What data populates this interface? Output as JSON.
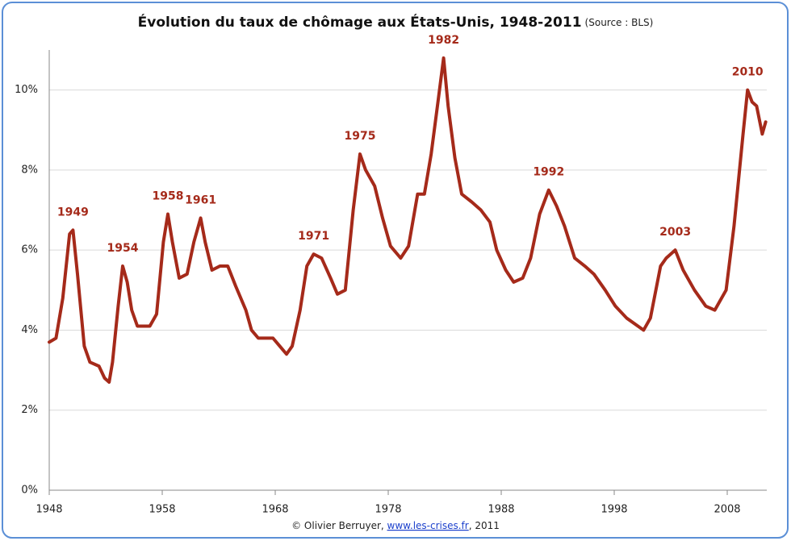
{
  "chart_data": {
    "type": "line",
    "title": "Évolution du taux de chômage aux États-Unis, 1948-2011",
    "subtitle": "(Source : BLS)",
    "footer": {
      "prefix": "© Olivier Berruyer, ",
      "link": "www.les-crises.fr",
      "suffix": ", 2011"
    },
    "color": "#a52a1a",
    "x": [
      1948.0,
      1948.6,
      1949.2,
      1949.8,
      1950.1,
      1950.5,
      1951.1,
      1951.6,
      1952.4,
      1952.9,
      1953.3,
      1953.6,
      1954.1,
      1954.5,
      1954.9,
      1955.3,
      1955.8,
      1956.2,
      1956.9,
      1957.5,
      1958.1,
      1958.5,
      1958.9,
      1959.5,
      1960.2,
      1960.8,
      1961.4,
      1961.8,
      1962.4,
      1963.1,
      1963.8,
      1964.5,
      1965.4,
      1965.9,
      1966.5,
      1967.2,
      1967.8,
      1968.4,
      1969.0,
      1969.5,
      1970.2,
      1970.8,
      1971.4,
      1972.1,
      1972.9,
      1973.5,
      1974.2,
      1974.9,
      1975.5,
      1976.0,
      1976.8,
      1977.5,
      1978.2,
      1979.1,
      1979.8,
      1980.6,
      1981.2,
      1981.8,
      1982.4,
      1982.9,
      1983.3,
      1983.9,
      1984.5,
      1985.4,
      1986.2,
      1987.0,
      1987.6,
      1988.4,
      1989.1,
      1989.9,
      1990.6,
      1991.4,
      1992.2,
      1992.9,
      1993.6,
      1994.5,
      1995.4,
      1996.2,
      1997.2,
      1998.1,
      1999.1,
      2000.1,
      2000.6,
      2001.2,
      2002.1,
      2002.6,
      2003.4,
      2004.1,
      2005.1,
      2006.1,
      2006.9,
      2007.9,
      2008.6,
      2009.4,
      2009.8,
      2010.2,
      2010.6,
      2011.1,
      2011.4
    ],
    "values": [
      3.7,
      3.8,
      4.8,
      6.4,
      6.5,
      5.4,
      3.6,
      3.2,
      3.1,
      2.8,
      2.7,
      3.2,
      4.6,
      5.6,
      5.2,
      4.5,
      4.1,
      4.1,
      4.1,
      4.4,
      6.2,
      6.9,
      6.2,
      5.3,
      5.4,
      6.2,
      6.8,
      6.2,
      5.5,
      5.6,
      5.6,
      5.1,
      4.5,
      4.0,
      3.8,
      3.8,
      3.8,
      3.6,
      3.4,
      3.6,
      4.5,
      5.6,
      5.9,
      5.8,
      5.3,
      4.9,
      5.0,
      7.0,
      8.4,
      8.0,
      7.6,
      6.8,
      6.1,
      5.8,
      6.1,
      7.4,
      7.4,
      8.4,
      9.7,
      10.8,
      9.6,
      8.3,
      7.4,
      7.2,
      7.0,
      6.7,
      6.0,
      5.5,
      5.2,
      5.3,
      5.8,
      6.9,
      7.5,
      7.1,
      6.6,
      5.8,
      5.6,
      5.4,
      5.0,
      4.6,
      4.3,
      4.1,
      4.0,
      4.3,
      5.6,
      5.8,
      6.0,
      5.5,
      5.0,
      4.6,
      4.5,
      5.0,
      6.6,
      8.9,
      10.0,
      9.7,
      9.6,
      8.9,
      9.2
    ],
    "annotations": [
      {
        "text": "1949",
        "x": 1950.1,
        "y": 6.5
      },
      {
        "text": "1954",
        "x": 1954.5,
        "y": 5.6
      },
      {
        "text": "1958",
        "x": 1958.5,
        "y": 6.9
      },
      {
        "text": "1961",
        "x": 1961.4,
        "y": 6.8
      },
      {
        "text": "1971",
        "x": 1971.4,
        "y": 5.9
      },
      {
        "text": "1975",
        "x": 1975.5,
        "y": 8.4
      },
      {
        "text": "1982",
        "x": 1982.9,
        "y": 10.8
      },
      {
        "text": "1992",
        "x": 1992.2,
        "y": 7.5
      },
      {
        "text": "2003",
        "x": 2003.4,
        "y": 6.0
      },
      {
        "text": "2010",
        "x": 2009.8,
        "y": 10.0
      }
    ],
    "xlim": [
      1948,
      2011.5
    ],
    "xticks": [
      1948,
      1958,
      1968,
      1978,
      1988,
      1998,
      2008
    ],
    "ylim": [
      0,
      11
    ],
    "yticks": [
      {
        "value": 0,
        "label": "0%"
      },
      {
        "value": 2,
        "label": "2%"
      },
      {
        "value": 4,
        "label": "4%"
      },
      {
        "value": 6,
        "label": "6%"
      },
      {
        "value": 8,
        "label": "8%"
      },
      {
        "value": 10,
        "label": "10%"
      }
    ],
    "grid": true
  }
}
